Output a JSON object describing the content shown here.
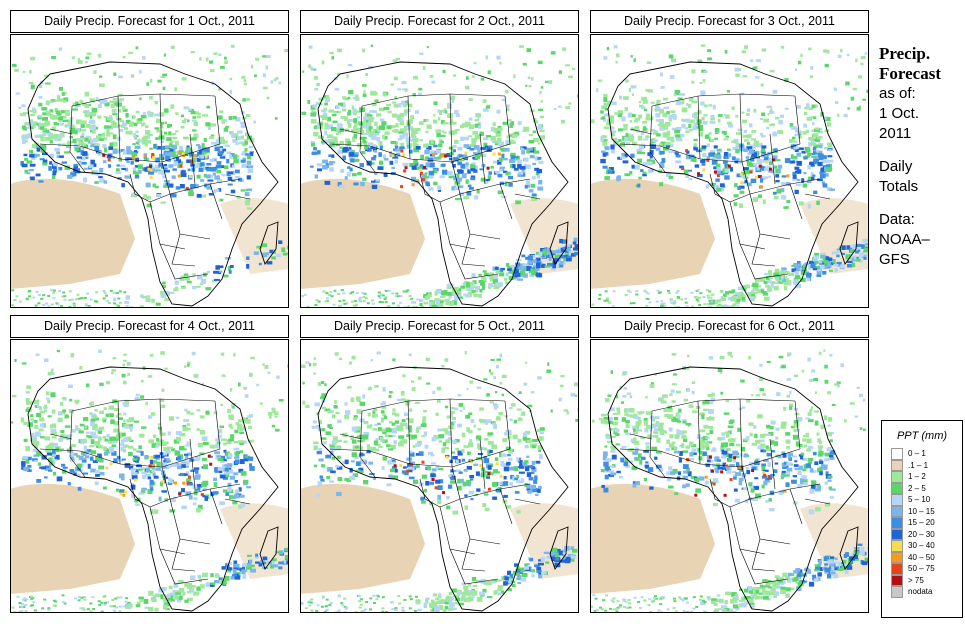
{
  "panels": [
    {
      "title": "Daily Precip. Forecast for  1 Oct., 2011",
      "intensity": 1.0,
      "south_band": 0.3
    },
    {
      "title": "Daily Precip. Forecast for  2 Oct., 2011",
      "intensity": 0.9,
      "south_band": 1.0
    },
    {
      "title": "Daily Precip. Forecast for  3 Oct., 2011",
      "intensity": 0.85,
      "south_band": 0.9
    },
    {
      "title": "Daily Precip. Forecast for  4 Oct., 2011",
      "intensity": 0.8,
      "south_band": 0.6
    },
    {
      "title": "Daily Precip. Forecast for  5 Oct., 2011",
      "intensity": 0.7,
      "south_band": 0.7
    },
    {
      "title": "Daily Precip. Forecast for  6 Oct., 2011",
      "intensity": 0.75,
      "south_band": 0.8
    }
  ],
  "side": {
    "heading_line1": "Precip.",
    "heading_line2": "Forecast",
    "asof_label": "as of:",
    "date_line1": "1 Oct.",
    "date_line2": "2011",
    "totals_line1": "Daily",
    "totals_line2": "Totals",
    "data_label": "Data:",
    "source_line1": "NOAA–",
    "source_line2": "GFS"
  },
  "legend": {
    "title": "PPT (mm)",
    "items": [
      {
        "label": "0 – 1",
        "color": "#ffffff"
      },
      {
        "label": ".1 – 1",
        "color": "#e8d4b4"
      },
      {
        "label": "1 – 2",
        "color": "#9fe79a"
      },
      {
        "label": "2 – 5",
        "color": "#5bd76a"
      },
      {
        "label": "5 – 10",
        "color": "#b6d6f7"
      },
      {
        "label": "10 – 15",
        "color": "#7ab6ec"
      },
      {
        "label": "15 – 20",
        "color": "#3d8ee0"
      },
      {
        "label": "20 – 30",
        "color": "#1f63d6"
      },
      {
        "label": "30 – 40",
        "color": "#f5dd4e"
      },
      {
        "label": "40 – 50",
        "color": "#f79b1c"
      },
      {
        "label": "50 – 75",
        "color": "#e8421a"
      },
      {
        "label": "> 75",
        "color": "#b40f0f"
      },
      {
        "label": "nodata",
        "color": "#c8c8c8"
      }
    ]
  }
}
